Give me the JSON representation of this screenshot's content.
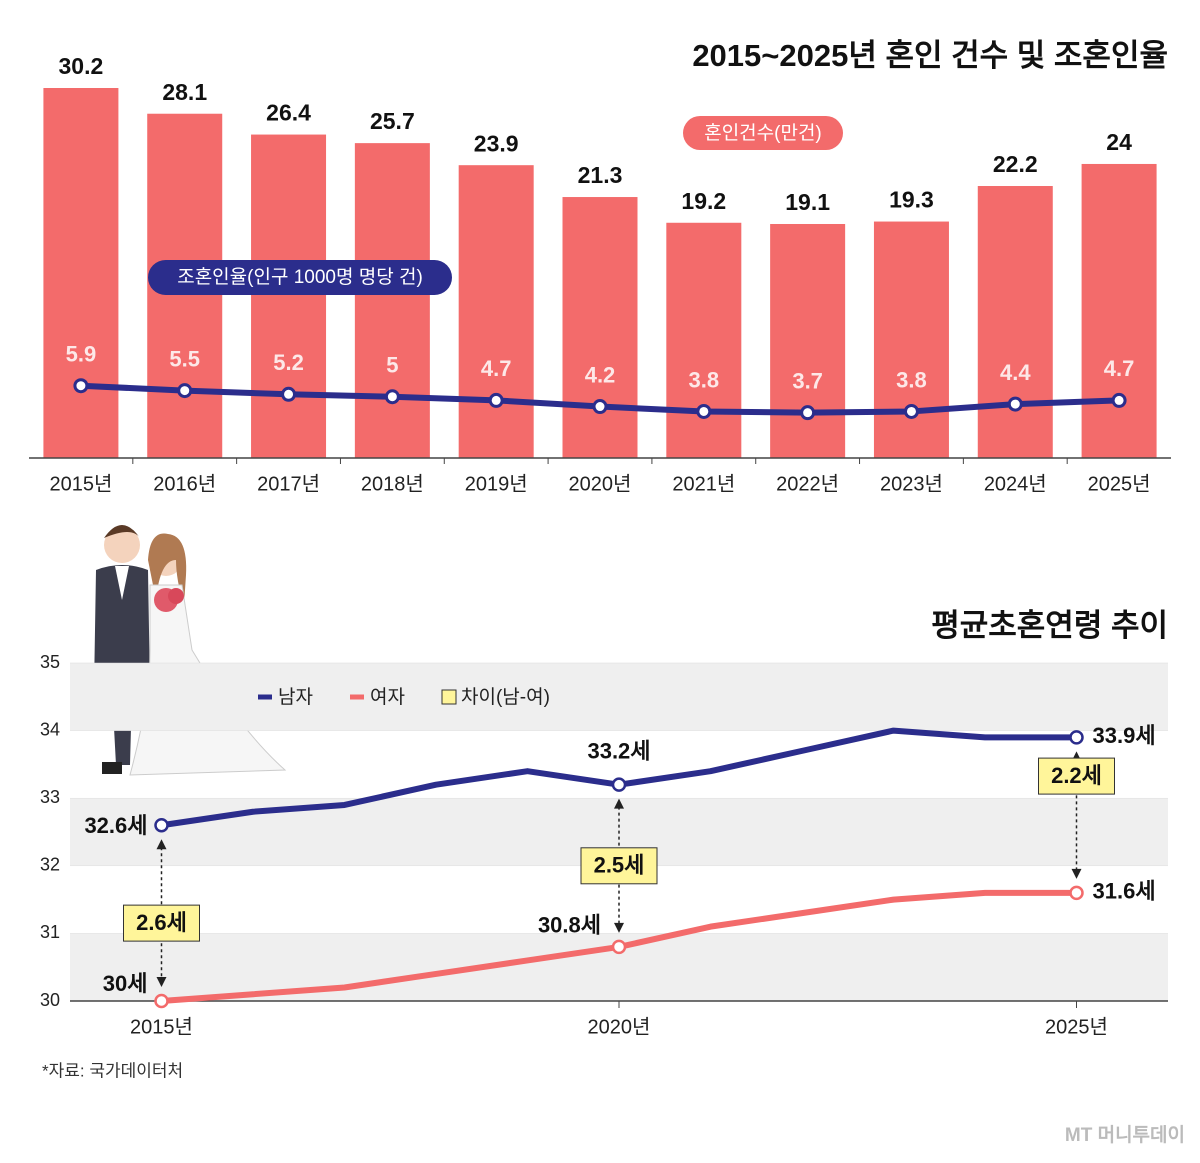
{
  "chart_data": [
    {
      "type": "bar",
      "title": "2015~2025년 혼인 건수 및 조혼인율",
      "categories": [
        "2015년",
        "2016년",
        "2017년",
        "2018년",
        "2019년",
        "2020년",
        "2021년",
        "2022년",
        "2023년",
        "2024년",
        "2025년"
      ],
      "series": [
        {
          "name": "혼인건수(만건)",
          "type": "bar",
          "color": "#f36b6b",
          "values": [
            30.2,
            28.1,
            26.4,
            25.7,
            23.9,
            21.3,
            19.2,
            19.1,
            19.3,
            22.2,
            24
          ]
        },
        {
          "name": "조혼인율(인구 1000명 명당 건)",
          "type": "line",
          "color": "#2b2d8c",
          "values": [
            5.9,
            5.5,
            5.2,
            5,
            4.7,
            4.2,
            3.8,
            3.7,
            3.8,
            4.4,
            4.7
          ]
        }
      ]
    },
    {
      "type": "line",
      "title": "평균초혼연령 추이",
      "x": [
        2015,
        2016,
        2017,
        2018,
        2019,
        2020,
        2021,
        2022,
        2023,
        2024,
        2025
      ],
      "xlim": [
        2014,
        2026
      ],
      "xticks": [
        {
          "value": 2015,
          "label": "2015년"
        },
        {
          "value": 2020,
          "label": "2020년"
        },
        {
          "value": 2025,
          "label": "2025년"
        }
      ],
      "ylim": [
        30,
        35
      ],
      "yticks": [
        30,
        31,
        32,
        33,
        34,
        35
      ],
      "grid": "bands",
      "series": [
        {
          "name": "남자",
          "color": "#2b2d8c",
          "values": [
            32.6,
            32.8,
            32.9,
            33.2,
            33.4,
            33.2,
            33.4,
            33.7,
            34.0,
            33.9,
            33.9
          ],
          "value_labels": [
            "32.6세",
            null,
            null,
            null,
            null,
            "33.2세",
            null,
            null,
            null,
            null,
            "33.9세"
          ]
        },
        {
          "name": "여자",
          "color": "#f36b6b",
          "values": [
            30.0,
            30.1,
            30.2,
            30.4,
            30.6,
            30.8,
            31.1,
            31.3,
            31.5,
            31.6,
            31.6
          ],
          "value_labels": [
            "30세",
            null,
            null,
            null,
            null,
            "30.8세",
            null,
            null,
            null,
            null,
            "31.6세"
          ]
        }
      ],
      "difference": {
        "name": "차이(남-여)",
        "color": "#fff59a",
        "x": [
          2015,
          2020,
          2025
        ],
        "values": [
          2.6,
          2.5,
          2.2
        ],
        "value_labels": [
          "2.6세",
          "2.5세",
          "2.2세"
        ]
      }
    }
  ],
  "source": "*자료: 국가데이터처",
  "watermark": "MT 머니투데이"
}
